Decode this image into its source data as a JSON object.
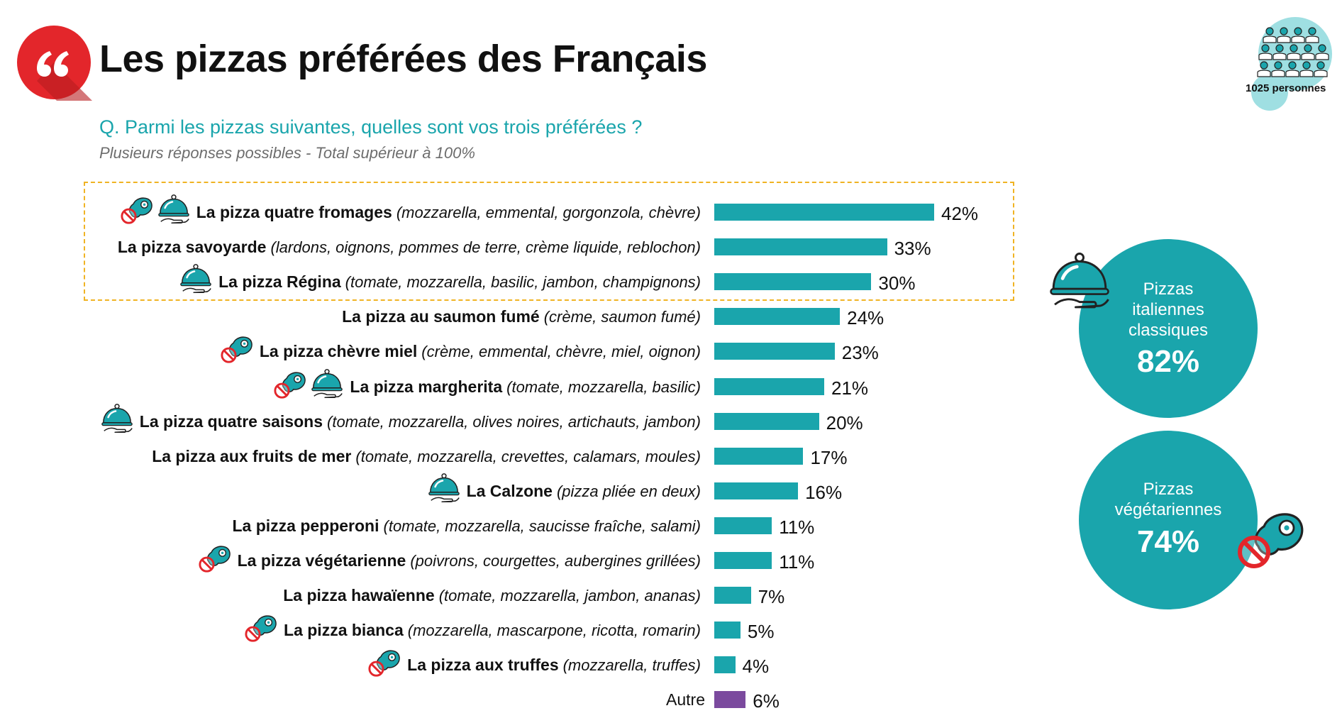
{
  "title": "Les pizzas préférées des Français",
  "question": "Q. Parmi les pizzas suivantes, quelles sont vos trois préférées ?",
  "note": "Plusieurs réponses possibles - Total supérieur à 100%",
  "sample": {
    "label": "1025 personnes"
  },
  "colors": {
    "teal": "#1aa5ac",
    "purple": "#7b4a9e",
    "highlight": "#f0b323",
    "red": "#e3262b",
    "text": "#111111"
  },
  "icons": {
    "quote": "quote-icon",
    "classic": "cloche-icon",
    "vegetarian": "no-meat-icon",
    "sample": "people-icon"
  },
  "summary": {
    "italiennes": {
      "label_lines": [
        "Pizzas",
        "italiennes",
        "classiques"
      ],
      "value": "82%"
    },
    "vegetariennes": {
      "label_lines": [
        "Pizzas",
        "végétariennes"
      ],
      "value": "74%"
    }
  },
  "chart_data": {
    "type": "bar",
    "orientation": "horizontal",
    "categories": [
      "La pizza quatre fromages",
      "La pizza savoyarde",
      "La pizza Régina",
      "La pizza au saumon fumé",
      "La pizza chèvre miel",
      "La pizza margherita",
      "La pizza quatre saisons",
      "La pizza aux fruits de mer",
      "La Calzone",
      "La pizza pepperoni",
      "La pizza végétarienne",
      "La pizza hawaïenne",
      "La pizza bianca",
      "La pizza aux truffes",
      "Autre"
    ],
    "details": [
      "(mozzarella, emmental, gorgonzola, chèvre)",
      "(lardons, oignons, pommes de terre, crème liquide, reblochon)",
      "(tomate, mozzarella, basilic, jambon, champignons)",
      "(crème, saumon fumé)",
      "(crème, emmental, chèvre, miel, oignon)",
      "(tomate, mozzarella, basilic)",
      "(tomate, mozzarella, olives noires, artichauts, jambon)",
      "(tomate, mozzarella, crevettes, calamars, moules)",
      "(pizza pliée en deux)",
      "(tomate, mozzarella, saucisse fraîche, salami)",
      "(poivrons, courgettes, aubergines grillées)",
      "(tomate, mozzarella, jambon, ananas)",
      "(mozzarella, mascarpone, ricotta, romarin)",
      "(mozzarella, truffes)",
      ""
    ],
    "values": [
      42,
      33,
      30,
      24,
      23,
      21,
      20,
      17,
      16,
      11,
      11,
      7,
      5,
      4,
      6
    ],
    "value_labels": [
      "42%",
      "33%",
      "30%",
      "24%",
      "23%",
      "21%",
      "20%",
      "17%",
      "16%",
      "11%",
      "11%",
      "7%",
      "5%",
      "4%",
      "6%"
    ],
    "icons": [
      [
        "no-meat-icon",
        "cloche-icon"
      ],
      [],
      [
        "cloche-icon"
      ],
      [],
      [
        "no-meat-icon"
      ],
      [
        "no-meat-icon",
        "cloche-icon"
      ],
      [
        "cloche-icon"
      ],
      [],
      [
        "cloche-icon"
      ],
      [],
      [
        "no-meat-icon"
      ],
      [],
      [
        "no-meat-icon"
      ],
      [
        "no-meat-icon"
      ],
      []
    ],
    "bar_colors": [
      "#1aa5ac",
      "#1aa5ac",
      "#1aa5ac",
      "#1aa5ac",
      "#1aa5ac",
      "#1aa5ac",
      "#1aa5ac",
      "#1aa5ac",
      "#1aa5ac",
      "#1aa5ac",
      "#1aa5ac",
      "#1aa5ac",
      "#1aa5ac",
      "#1aa5ac",
      "#7b4a9e"
    ],
    "highlighted": [
      0,
      1,
      2
    ],
    "xlim": [
      0,
      42
    ],
    "grid": false,
    "legend": "none"
  }
}
